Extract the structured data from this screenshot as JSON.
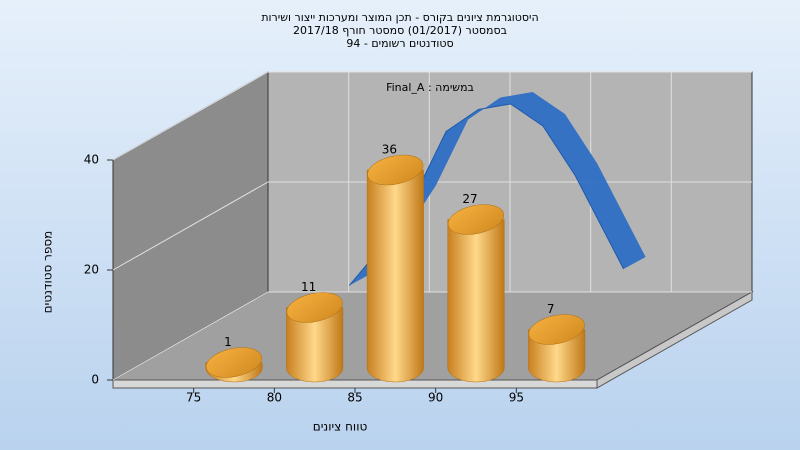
{
  "chart_data": {
    "type": "histogram",
    "title": [
      "היסטוגרמת ציונים בקורס - תכן המוצר ומערכות ייצור ושירות",
      "בסמסטר  (01/2017)  סמסטר חורף 2017/18",
      "סטודנטים רשומים - 94"
    ],
    "annotation": "Final_A : במשימה",
    "x_label": "טווח ציונים",
    "y_label": "מספר סטודנטים",
    "bins": [
      75,
      80,
      85,
      90,
      95,
      100
    ],
    "values": [
      1,
      11,
      36,
      27,
      7
    ],
    "color": "#f0a840",
    "curve": {
      "color": "#2f6fc4",
      "x": [
        80,
        82,
        84,
        86,
        88,
        90,
        92,
        94,
        97
      ],
      "values": [
        9,
        16,
        25,
        37,
        41,
        42,
        38,
        29,
        12
      ]
    },
    "xlim": [
      70,
      100
    ],
    "xticks": [
      75,
      80,
      85,
      90,
      95
    ],
    "ylim": [
      0,
      40
    ],
    "yticks": [
      0,
      20,
      40
    ],
    "grid": true
  }
}
